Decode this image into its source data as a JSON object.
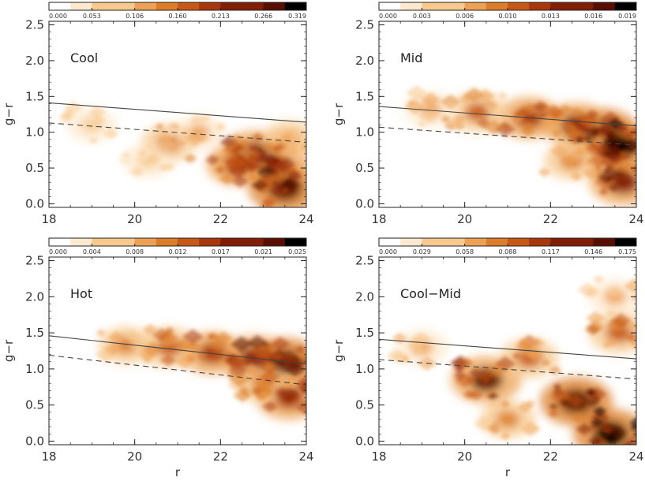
{
  "figure": {
    "colormap": [
      "#ffffff",
      "#fde9cf",
      "#f7c98f",
      "#eea154",
      "#dc7d2a",
      "#c75815",
      "#a8380c",
      "#821e06",
      "#5a0e02",
      "#000000"
    ],
    "panels": [
      {
        "label": "Cool",
        "colorbar_ticks": [
          "0.000",
          "0.053",
          "0.106",
          "0.160",
          "0.213",
          "0.266",
          "0.319"
        ],
        "xlabel": "",
        "ylabel": "g−r"
      },
      {
        "label": "Mid",
        "colorbar_ticks": [
          "0.000",
          "0.003",
          "0.006",
          "0.010",
          "0.013",
          "0.016",
          "0.019"
        ],
        "xlabel": "",
        "ylabel": "g−r"
      },
      {
        "label": "Hot",
        "colorbar_ticks": [
          "0.000",
          "0.004",
          "0.008",
          "0.012",
          "0.017",
          "0.021",
          "0.025"
        ],
        "xlabel": "r",
        "ylabel": "g−r"
      },
      {
        "label": "Cool−Mid",
        "colorbar_ticks": [
          "0.000",
          "0.029",
          "0.058",
          "0.088",
          "0.117",
          "0.146",
          "0.175"
        ],
        "xlabel": "r",
        "ylabel": "g−r"
      }
    ]
  },
  "chart_data": [
    {
      "type": "heatmap",
      "title": "Cool",
      "xlabel": "",
      "ylabel": "g−r",
      "xlim": [
        18,
        24
      ],
      "ylim": [
        -0.05,
        2.55
      ],
      "x_ticks": [
        "18",
        "20",
        "22",
        "24"
      ],
      "y_ticks": [
        "0.0",
        "0.5",
        "1.0",
        "1.5",
        "2.0",
        "2.5"
      ],
      "colorbar": {
        "min": 0.0,
        "max": 0.319,
        "ticks": [
          0.0,
          0.053,
          0.106,
          0.16,
          0.213,
          0.266,
          0.319
        ]
      },
      "lines": [
        {
          "style": "solid",
          "x": [
            18,
            24
          ],
          "y": [
            1.41,
            1.14
          ]
        },
        {
          "style": "dashed",
          "x": [
            18,
            24
          ],
          "y": [
            1.13,
            0.86
          ]
        }
      ],
      "density_peaks": [
        {
          "r": 23.5,
          "gr": 0.22,
          "value": 0.3
        },
        {
          "r": 22.8,
          "gr": 0.7,
          "value": 0.26
        },
        {
          "r": 23.3,
          "gr": 0.55,
          "value": 0.24
        },
        {
          "r": 22.4,
          "gr": 0.55,
          "value": 0.2
        },
        {
          "r": 20.8,
          "gr": 0.85,
          "value": 0.14
        },
        {
          "r": 23.6,
          "gr": 0.9,
          "value": 0.12
        },
        {
          "r": 21.5,
          "gr": 1.0,
          "value": 0.1
        },
        {
          "r": 19.0,
          "gr": 1.1,
          "value": 0.08
        },
        {
          "r": 20.3,
          "gr": 0.6,
          "value": 0.08
        }
      ]
    },
    {
      "type": "heatmap",
      "title": "Mid",
      "xlabel": "",
      "ylabel": "g−r",
      "xlim": [
        18,
        24
      ],
      "ylim": [
        -0.05,
        2.55
      ],
      "x_ticks": [
        "18",
        "20",
        "22",
        "24"
      ],
      "y_ticks": [
        "0.0",
        "0.5",
        "1.0",
        "1.5",
        "2.0",
        "2.5"
      ],
      "colorbar": {
        "min": 0.0,
        "max": 0.019,
        "ticks": [
          0.0,
          0.003,
          0.006,
          0.01,
          0.013,
          0.016,
          0.019
        ]
      },
      "lines": [
        {
          "style": "solid",
          "x": [
            18,
            24
          ],
          "y": [
            1.36,
            1.09
          ]
        },
        {
          "style": "dashed",
          "x": [
            18,
            24
          ],
          "y": [
            1.07,
            0.82
          ]
        }
      ],
      "density_peaks": [
        {
          "r": 23.6,
          "gr": 0.8,
          "value": 0.018
        },
        {
          "r": 23.2,
          "gr": 1.0,
          "value": 0.017
        },
        {
          "r": 23.7,
          "gr": 0.3,
          "value": 0.015
        },
        {
          "r": 22.6,
          "gr": 1.1,
          "value": 0.014
        },
        {
          "r": 21.5,
          "gr": 1.2,
          "value": 0.012
        },
        {
          "r": 20.3,
          "gr": 1.28,
          "value": 0.01
        },
        {
          "r": 19.2,
          "gr": 1.32,
          "value": 0.007
        },
        {
          "r": 22.5,
          "gr": 0.6,
          "value": 0.008
        }
      ]
    },
    {
      "type": "heatmap",
      "title": "Hot",
      "xlabel": "r",
      "ylabel": "g−r",
      "xlim": [
        18,
        24
      ],
      "ylim": [
        -0.05,
        2.55
      ],
      "x_ticks": [
        "18",
        "20",
        "22",
        "24"
      ],
      "y_ticks": [
        "0.0",
        "0.5",
        "1.0",
        "1.5",
        "2.0",
        "2.5"
      ],
      "colorbar": {
        "min": 0.0,
        "max": 0.025,
        "ticks": [
          0.0,
          0.004,
          0.008,
          0.012,
          0.017,
          0.021,
          0.025
        ]
      },
      "lines": [
        {
          "style": "solid",
          "x": [
            18,
            24
          ],
          "y": [
            1.46,
            1.07
          ]
        },
        {
          "style": "dashed",
          "x": [
            18,
            24
          ],
          "y": [
            1.19,
            0.78
          ]
        }
      ],
      "density_peaks": [
        {
          "r": 23.5,
          "gr": 1.1,
          "value": 0.022
        },
        {
          "r": 22.8,
          "gr": 1.15,
          "value": 0.02
        },
        {
          "r": 23.6,
          "gr": 0.6,
          "value": 0.018
        },
        {
          "r": 21.8,
          "gr": 1.22,
          "value": 0.016
        },
        {
          "r": 20.8,
          "gr": 1.3,
          "value": 0.014
        },
        {
          "r": 19.8,
          "gr": 1.33,
          "value": 0.01
        },
        {
          "r": 23.0,
          "gr": 0.8,
          "value": 0.012
        }
      ]
    },
    {
      "type": "heatmap",
      "title": "Cool−Mid",
      "xlabel": "r",
      "ylabel": "g−r",
      "xlim": [
        18,
        24
      ],
      "ylim": [
        -0.05,
        2.55
      ],
      "x_ticks": [
        "18",
        "20",
        "22",
        "24"
      ],
      "y_ticks": [
        "0.0",
        "0.5",
        "1.0",
        "1.5",
        "2.0",
        "2.5"
      ],
      "colorbar": {
        "min": 0.0,
        "max": 0.175,
        "ticks": [
          0.0,
          0.029,
          0.058,
          0.088,
          0.117,
          0.146,
          0.175
        ]
      },
      "lines": [
        {
          "style": "solid",
          "x": [
            18,
            24
          ],
          "y": [
            1.41,
            1.14
          ]
        },
        {
          "style": "dashed",
          "x": [
            18,
            24
          ],
          "y": [
            1.13,
            0.86
          ]
        }
      ],
      "density_peaks": [
        {
          "r": 23.4,
          "gr": 0.1,
          "value": 0.17
        },
        {
          "r": 22.6,
          "gr": 0.55,
          "value": 0.16
        },
        {
          "r": 20.5,
          "gr": 0.85,
          "value": 0.15
        },
        {
          "r": 23.6,
          "gr": 1.5,
          "value": 0.1
        },
        {
          "r": 21.5,
          "gr": 1.15,
          "value": 0.09
        },
        {
          "r": 19.0,
          "gr": 1.3,
          "value": 0.06
        },
        {
          "r": 21.0,
          "gr": 0.3,
          "value": 0.07
        },
        {
          "r": 23.5,
          "gr": 2.0,
          "value": 0.06
        }
      ]
    }
  ]
}
